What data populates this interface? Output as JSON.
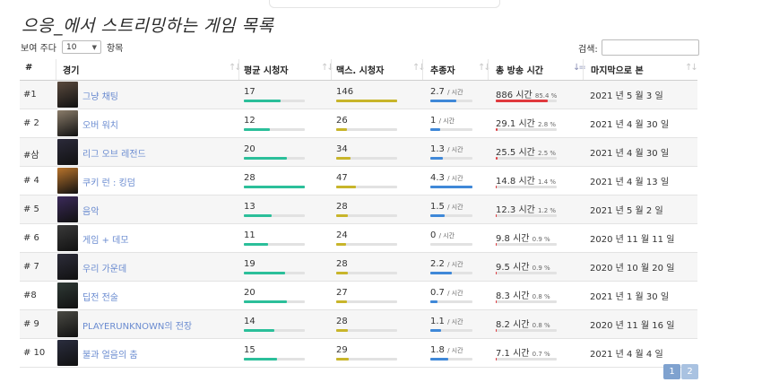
{
  "title": "으응_에서 스트리밍하는 게임 목록",
  "length_menu": {
    "prefix": "보여 주다",
    "value": "10",
    "suffix": "항목"
  },
  "search": {
    "label": "검색:",
    "value": ""
  },
  "columns": [
    "#",
    "경기",
    "평균 시청자",
    "맥스. 시청자",
    "추종자",
    "총 방송 시간",
    "마지막으로 본"
  ],
  "rows": [
    {
      "rank": "#1",
      "name": "그냥 채팅",
      "avg": "17",
      "avg_pct": 0.6,
      "max": "146",
      "max_pct": 1.0,
      "follow": "2.7",
      "follow_pct": 0.62,
      "hours": "886 시간",
      "hours_pct": "85.4 %",
      "hours_frac": 0.854,
      "date": "2021 년 5 월 3 일",
      "thumb": "#5a4a3e"
    },
    {
      "rank": "# 2",
      "name": "오버 워치",
      "avg": "12",
      "avg_pct": 0.42,
      "max": "26",
      "max_pct": 0.18,
      "follow": "1",
      "follow_pct": 0.23,
      "hours": "29.1 시간",
      "hours_pct": "2.8 %",
      "hours_frac": 0.028,
      "date": "2021 년 4 월 30 일",
      "thumb": "#8a7c6a"
    },
    {
      "rank": "#삼",
      "name": "리그 오브 레전드",
      "avg": "20",
      "avg_pct": 0.71,
      "max": "34",
      "max_pct": 0.23,
      "follow": "1.3",
      "follow_pct": 0.3,
      "hours": "25.5 시간",
      "hours_pct": "2.5 %",
      "hours_frac": 0.025,
      "date": "2021 년 4 월 30 일",
      "thumb": "#2b2a3a"
    },
    {
      "rank": "# 4",
      "name": "쿠키 런 : 킹덤",
      "avg": "28",
      "avg_pct": 1.0,
      "max": "47",
      "max_pct": 0.32,
      "follow": "4.3",
      "follow_pct": 1.0,
      "hours": "14.8 시간",
      "hours_pct": "1.4 %",
      "hours_frac": 0.014,
      "date": "2021 년 4 월 13 일",
      "thumb": "#b8742c"
    },
    {
      "rank": "# 5",
      "name": "음악",
      "avg": "13",
      "avg_pct": 0.46,
      "max": "28",
      "max_pct": 0.19,
      "follow": "1.5",
      "follow_pct": 0.35,
      "hours": "12.3 시간",
      "hours_pct": "1.2 %",
      "hours_frac": 0.012,
      "date": "2021 년 5 월 2 일",
      "thumb": "#3b2a5a"
    },
    {
      "rank": "# 6",
      "name": "게임 + 데모",
      "avg": "11",
      "avg_pct": 0.39,
      "max": "24",
      "max_pct": 0.16,
      "follow": "0",
      "follow_pct": 0.0,
      "hours": "9.8 시간",
      "hours_pct": "0.9 %",
      "hours_frac": 0.009,
      "date": "2020 년 11 월 11 일",
      "thumb": "#3a3a3a"
    },
    {
      "rank": "# 7",
      "name": "우리 가운데",
      "avg": "19",
      "avg_pct": 0.68,
      "max": "28",
      "max_pct": 0.19,
      "follow": "2.2",
      "follow_pct": 0.51,
      "hours": "9.5 시간",
      "hours_pct": "0.9 %",
      "hours_frac": 0.009,
      "date": "2020 년 10 월 20 일",
      "thumb": "#2d2d3a"
    },
    {
      "rank": "#8",
      "name": "딥전 전술",
      "avg": "20",
      "avg_pct": 0.71,
      "max": "27",
      "max_pct": 0.18,
      "follow": "0.7",
      "follow_pct": 0.16,
      "hours": "8.3 시간",
      "hours_pct": "0.8 %",
      "hours_frac": 0.008,
      "date": "2021 년 1 월 30 일",
      "thumb": "#2f3a36"
    },
    {
      "rank": "# 9",
      "name": "PLAYERUNKNOWN의 전장",
      "avg": "14",
      "avg_pct": 0.5,
      "max": "28",
      "max_pct": 0.19,
      "follow": "1.1",
      "follow_pct": 0.26,
      "hours": "8.2 시간",
      "hours_pct": "0.8 %",
      "hours_frac": 0.008,
      "date": "2020 년 11 월 16 일",
      "thumb": "#4a4a44"
    },
    {
      "rank": "# 10",
      "name": "불과 얼음의 춤",
      "avg": "15",
      "avg_pct": 0.54,
      "max": "29",
      "max_pct": 0.2,
      "follow": "1.8",
      "follow_pct": 0.42,
      "hours": "7.1 시간",
      "hours_pct": "0.7 %",
      "hours_frac": 0.007,
      "date": "2021 년 4 월 4 일",
      "thumb": "#2a2d3e"
    }
  ],
  "per_hour_suffix": "/ 시간",
  "colors": {
    "avg": "#2bbf9a",
    "max": "#c8b52a",
    "follow": "#3f88d8",
    "hours": "#e0393e",
    "link": "#6a8bd0"
  },
  "pagination": [
    "1",
    "2"
  ]
}
